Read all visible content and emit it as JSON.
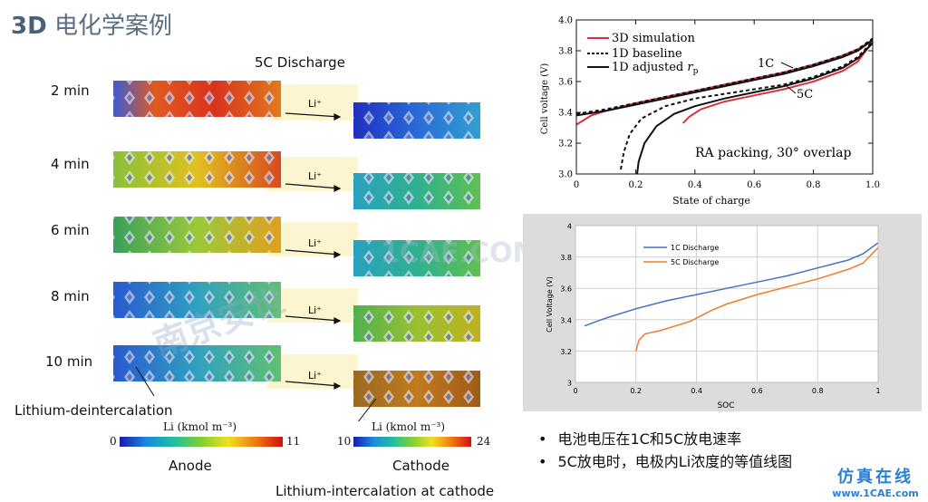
{
  "title": {
    "prefix": "3D",
    "text": "电化学案例"
  },
  "sim": {
    "heading": "5C Discharge",
    "rows": [
      {
        "time": "2 min",
        "arrow": "Li⁺"
      },
      {
        "time": "4 min",
        "arrow": "Li⁺"
      },
      {
        "time": "6 min",
        "arrow": "Li⁺"
      },
      {
        "time": "8 min",
        "arrow": "Li⁺"
      },
      {
        "time": "10 min",
        "arrow": "Li⁺"
      }
    ],
    "annotation_left": "Lithium-deintercalation",
    "annotation_bottom": "Lithium-intercalation at cathode",
    "anode": {
      "label": "Anode",
      "scale_title": "Li (kmol m⁻³)",
      "min": "0",
      "max": "11"
    },
    "cathode": {
      "label": "Cathode",
      "scale_title": "Li (kmol m⁻³)",
      "min": "10",
      "max": "24"
    }
  },
  "chart_data": [
    {
      "type": "line",
      "xlabel": "State of charge",
      "ylabel": "Cell voltage (V)",
      "xlim": [
        0,
        1.0
      ],
      "ylim": [
        3.0,
        4.0
      ],
      "xticks": [
        "0",
        "0.2",
        "0.4",
        "0.6",
        "0.8",
        "1.0"
      ],
      "yticks": [
        "3.0",
        "3.2",
        "3.4",
        "3.6",
        "3.8",
        "4.0"
      ],
      "legend": [
        "3D simulation",
        "1D baseline",
        "1D adjusted r_p"
      ],
      "annotations": [
        "1C",
        "5C",
        "RA packing, 30° overlap"
      ],
      "series": [
        {
          "name": "3D simulation",
          "color": "#d9313c",
          "x": [
            0.0,
            0.05,
            0.1,
            0.2,
            0.3,
            0.4,
            0.5,
            0.6,
            0.7,
            0.8,
            0.9,
            0.95,
            1.0
          ],
          "y": [
            3.32,
            3.38,
            3.41,
            3.46,
            3.5,
            3.54,
            3.58,
            3.62,
            3.66,
            3.71,
            3.77,
            3.81,
            3.87
          ]
        },
        {
          "name": "3D simulation",
          "color": "#d9313c",
          "x": [
            0.36,
            0.38,
            0.42,
            0.5,
            0.6,
            0.7,
            0.8,
            0.9,
            0.95,
            1.0
          ],
          "y": [
            3.33,
            3.37,
            3.42,
            3.47,
            3.51,
            3.55,
            3.6,
            3.67,
            3.73,
            3.86
          ]
        },
        {
          "name": "1D baseline",
          "color": "#111111",
          "dash": true,
          "x": [
            0.0,
            0.1,
            0.2,
            0.3,
            0.4,
            0.5,
            0.6,
            0.7,
            0.8,
            0.9,
            0.95,
            1.0
          ],
          "y": [
            3.39,
            3.42,
            3.46,
            3.5,
            3.54,
            3.58,
            3.62,
            3.66,
            3.71,
            3.77,
            3.81,
            3.88
          ]
        },
        {
          "name": "1D baseline",
          "color": "#111111",
          "dash": true,
          "x": [
            0.15,
            0.16,
            0.18,
            0.22,
            0.3,
            0.4,
            0.5,
            0.6,
            0.7,
            0.8,
            0.9,
            0.95,
            1.0
          ],
          "y": [
            3.03,
            3.14,
            3.26,
            3.36,
            3.44,
            3.49,
            3.52,
            3.55,
            3.58,
            3.63,
            3.7,
            3.76,
            3.86
          ]
        },
        {
          "name": "1D adjusted r_p",
          "color": "#111111",
          "x": [
            0.0,
            0.1,
            0.2,
            0.3,
            0.4,
            0.5,
            0.6,
            0.7,
            0.8,
            0.9,
            0.95,
            1.0
          ],
          "y": [
            3.38,
            3.41,
            3.45,
            3.49,
            3.53,
            3.57,
            3.61,
            3.65,
            3.7,
            3.76,
            3.8,
            3.87
          ]
        },
        {
          "name": "1D adjusted r_p",
          "color": "#111111",
          "x": [
            0.205,
            0.21,
            0.23,
            0.27,
            0.33,
            0.4,
            0.5,
            0.6,
            0.7,
            0.8,
            0.9,
            0.95,
            1.0
          ],
          "y": [
            3.0,
            3.08,
            3.2,
            3.31,
            3.39,
            3.44,
            3.49,
            3.53,
            3.57,
            3.62,
            3.69,
            3.75,
            3.85
          ]
        }
      ]
    },
    {
      "type": "line",
      "xlabel": "SOC",
      "ylabel": "Cell Voltage (V)",
      "xlim": [
        0,
        1
      ],
      "ylim": [
        3,
        4
      ],
      "xticks": [
        "0",
        "0.2",
        "0.4",
        "0.6",
        "0.8",
        "1"
      ],
      "yticks": [
        "3",
        "3.2",
        "3.4",
        "3.6",
        "3.8",
        "4"
      ],
      "grid": true,
      "legend_position": "top-left",
      "series": [
        {
          "name": "1C Discharge",
          "color": "#4472c4",
          "x": [
            0.03,
            0.1,
            0.2,
            0.3,
            0.4,
            0.5,
            0.6,
            0.7,
            0.8,
            0.9,
            0.95,
            1.0
          ],
          "y": [
            3.36,
            3.41,
            3.47,
            3.52,
            3.56,
            3.6,
            3.64,
            3.68,
            3.73,
            3.78,
            3.82,
            3.89
          ]
        },
        {
          "name": "5C Discharge",
          "color": "#ed7d31",
          "x": [
            0.2,
            0.21,
            0.23,
            0.28,
            0.33,
            0.38,
            0.4,
            0.45,
            0.5,
            0.6,
            0.7,
            0.8,
            0.9,
            0.95,
            1.0
          ],
          "y": [
            3.2,
            3.27,
            3.31,
            3.33,
            3.36,
            3.39,
            3.41,
            3.46,
            3.5,
            3.56,
            3.61,
            3.66,
            3.72,
            3.76,
            3.86
          ]
        }
      ]
    }
  ],
  "bullets": [
    "电池电压在1C和5C放电速率",
    "5C放电时，电极内Li浓度的等值线图"
  ],
  "watermarks": {
    "center": "南京安世",
    "middle": "1CAE.COM",
    "logo_top": "仿真在线",
    "logo_bottom": "www.1CAE.com"
  }
}
